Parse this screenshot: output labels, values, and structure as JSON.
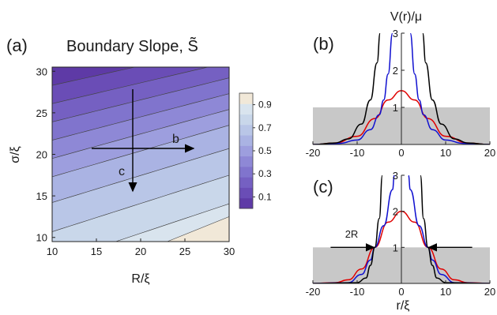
{
  "chart_data": [
    {
      "panel": "(a)",
      "type": "heatmap",
      "title": "Boundary Slope, S̃",
      "xlabel": "R/ξ",
      "ylabel": "σ/ξ",
      "xlim": [
        10,
        30
      ],
      "ylim": [
        9.5,
        30.5
      ],
      "xticks": [
        "10",
        "15",
        "20",
        "25",
        "30"
      ],
      "yticks": [
        "10",
        "15",
        "20",
        "25",
        "30"
      ],
      "colorbar": {
        "ticks": [
          "0.1",
          "0.3",
          "0.5",
          "0.7",
          "0.9"
        ],
        "levels": [
          0,
          0.1,
          0.2,
          0.3,
          0.4,
          0.5,
          0.6,
          0.7,
          0.8,
          0.9,
          1.0
        ],
        "colors": [
          "#5e3aa6",
          "#6a4db6",
          "#7560c2",
          "#8074cd",
          "#8e88d6",
          "#9d9ede",
          "#aab3e3",
          "#b9c6e7",
          "#c9d7ea",
          "#d9e4ee",
          "#f1e8d8"
        ]
      },
      "annotations": [
        {
          "label": "b",
          "from": [
            14,
            20
          ],
          "to": [
            27,
            20
          ]
        },
        {
          "label": "c",
          "from": [
            19,
            27
          ],
          "to": [
            19,
            13
          ]
        }
      ]
    },
    {
      "panel": "(b)",
      "type": "line",
      "ylabel": "V(r)/μ",
      "xlim": [
        -20,
        20
      ],
      "ylim": [
        0,
        3
      ],
      "xticks": [
        "-20",
        "-10",
        "0",
        "10",
        "20"
      ],
      "yticks": [
        "1",
        "2",
        "3"
      ],
      "shaded_band": [
        0,
        1
      ],
      "series": [
        {
          "color": "#e00000",
          "values_desc": "gaussian peak",
          "points": [
            [
              -20,
              0
            ],
            [
              -15,
              0.04
            ],
            [
              -10,
              0.22
            ],
            [
              -6,
              0.7
            ],
            [
              -3,
              1.2
            ],
            [
              0,
              1.45
            ],
            [
              3,
              1.2
            ],
            [
              6,
              0.7
            ],
            [
              10,
              0.22
            ],
            [
              15,
              0.04
            ],
            [
              20,
              0
            ]
          ]
        },
        {
          "color": "#1010d0",
          "points": [
            [
              -20,
              0
            ],
            [
              -14,
              0.03
            ],
            [
              -10,
              0.12
            ],
            [
              -7,
              0.4
            ],
            [
              -5,
              0.8
            ],
            [
              -4,
              1.2
            ],
            [
              -3,
              1.9
            ],
            [
              -2,
              3.0
            ]
          ]
        },
        {
          "color": "#1010d0",
          "points": [
            [
              2,
              3.0
            ],
            [
              3,
              1.9
            ],
            [
              4,
              1.2
            ],
            [
              5,
              0.8
            ],
            [
              7,
              0.4
            ],
            [
              10,
              0.12
            ],
            [
              14,
              0.03
            ],
            [
              20,
              0
            ]
          ]
        },
        {
          "color": "#000000",
          "points": [
            [
              -20,
              0
            ],
            [
              -15,
              0.04
            ],
            [
              -12,
              0.15
            ],
            [
              -9,
              0.55
            ],
            [
              -7,
              1.2
            ],
            [
              -5.5,
              2.2
            ],
            [
              -4.8,
              3.0
            ]
          ]
        },
        {
          "color": "#000000",
          "points": [
            [
              4.8,
              3.0
            ],
            [
              5.5,
              2.2
            ],
            [
              7,
              1.2
            ],
            [
              9,
              0.55
            ],
            [
              12,
              0.15
            ],
            [
              15,
              0.04
            ],
            [
              20,
              0
            ]
          ]
        }
      ]
    },
    {
      "panel": "(c)",
      "type": "line",
      "xlabel": "r/ξ",
      "xlim": [
        -20,
        20
      ],
      "ylim": [
        0,
        3
      ],
      "xticks": [
        "-20",
        "-10",
        "0",
        "10",
        "20"
      ],
      "yticks": [
        "1",
        "2",
        "3"
      ],
      "shaded_band": [
        0,
        1
      ],
      "annotations": [
        {
          "label": "2R",
          "x_left": -6,
          "x_right": 6,
          "y": 1
        }
      ],
      "series": [
        {
          "color": "#e00000",
          "points": [
            [
              -20,
              0
            ],
            [
              -15,
              0.02
            ],
            [
              -12,
              0.1
            ],
            [
              -9,
              0.4
            ],
            [
              -6,
              1.0
            ],
            [
              -3,
              1.7
            ],
            [
              0,
              2.0
            ],
            [
              3,
              1.7
            ],
            [
              6,
              1.0
            ],
            [
              9,
              0.4
            ],
            [
              12,
              0.1
            ],
            [
              15,
              0.02
            ],
            [
              20,
              0
            ]
          ]
        },
        {
          "color": "#1010d0",
          "points": [
            [
              -20,
              0
            ],
            [
              -12,
              0.02
            ],
            [
              -9,
              0.25
            ],
            [
              -7,
              0.65
            ],
            [
              -6,
              1.0
            ],
            [
              -4,
              1.6
            ],
            [
              -2,
              2.6
            ],
            [
              -1.6,
              3.0
            ]
          ]
        },
        {
          "color": "#1010d0",
          "points": [
            [
              1.6,
              3.0
            ],
            [
              2,
              2.6
            ],
            [
              4,
              1.6
            ],
            [
              6,
              1.0
            ],
            [
              7,
              0.65
            ],
            [
              9,
              0.25
            ],
            [
              12,
              0.02
            ],
            [
              20,
              0
            ]
          ]
        },
        {
          "color": "#000000",
          "points": [
            [
              -20,
              0
            ],
            [
              -10,
              0.02
            ],
            [
              -8,
              0.15
            ],
            [
              -7,
              0.5
            ],
            [
              -6,
              1.0
            ],
            [
              -5,
              1.8
            ],
            [
              -4.3,
              3.0
            ]
          ]
        },
        {
          "color": "#000000",
          "points": [
            [
              4.3,
              3.0
            ],
            [
              5,
              1.8
            ],
            [
              6,
              1.0
            ],
            [
              7,
              0.5
            ],
            [
              8,
              0.15
            ],
            [
              10,
              0.02
            ],
            [
              20,
              0
            ]
          ]
        }
      ]
    }
  ]
}
